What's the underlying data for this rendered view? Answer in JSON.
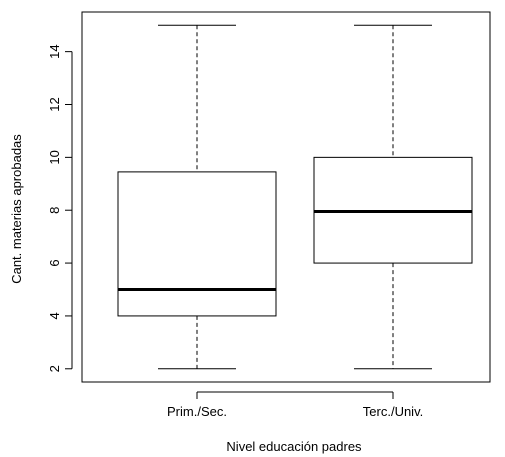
{
  "chart_data": {
    "type": "boxplot",
    "title": "",
    "xlabel": "Nivel educación padres",
    "ylabel": "Cant. materias aprobadas",
    "ylim": [
      1.5,
      15.5
    ],
    "yticks": [
      2,
      4,
      6,
      8,
      10,
      12,
      14
    ],
    "categories": [
      "Prim./Sec.",
      "Terc./Univ."
    ],
    "boxes": [
      {
        "min": 2,
        "q1": 4,
        "median": 5,
        "q3": 9.45,
        "max": 15
      },
      {
        "min": 2,
        "q1": 6,
        "median": 7.95,
        "q3": 10,
        "max": 15
      }
    ],
    "grid": false,
    "colors": {
      "stroke": "#000000",
      "fill": "#ffffff"
    }
  }
}
